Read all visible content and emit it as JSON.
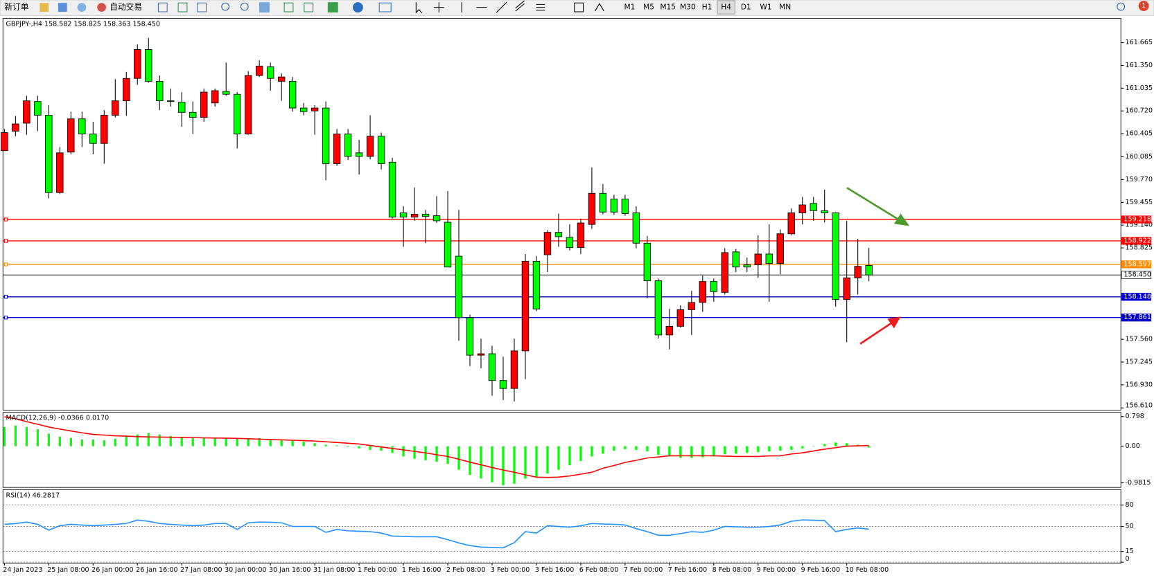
{
  "toolbar": {
    "order_button": "新订单",
    "auto_trading": "自动交易",
    "timeframes": [
      "M1",
      "M5",
      "M15",
      "M30",
      "H1",
      "H4",
      "D1",
      "W1",
      "MN"
    ],
    "badge": "1"
  },
  "chart_data": [
    {
      "type": "candlestick",
      "title": "GBPJPY-,H4 158.582 158.825 158.363 158.450",
      "categories": [
        "24 Jan 2023",
        null,
        null,
        null,
        "25 Jan 08:00",
        null,
        null,
        null,
        "26 Jan 00:00",
        null,
        null,
        null,
        "26 Jan 16:00",
        null,
        null,
        null,
        "27 Jan 08:00",
        null,
        null,
        null,
        "30 Jan 00:00",
        null,
        null,
        null,
        "30 Jan 16:00",
        null,
        null,
        null,
        "31 Jan 08:00",
        null,
        null,
        null,
        "1 Feb 00:00",
        null,
        null,
        null,
        "1 Feb 16:00",
        null,
        null,
        null,
        "2 Feb 08:00",
        null,
        null,
        null,
        "3 Feb 00:00",
        null,
        null,
        null,
        "3 Feb 16:00",
        null,
        null,
        null,
        "6 Feb 08:00",
        null,
        null,
        null,
        "7 Feb 00:00",
        null,
        null,
        null,
        "7 Feb 16:00",
        null,
        null,
        null,
        "8 Feb 08:00",
        null,
        null,
        null,
        "9 Feb 00:00",
        null,
        null,
        null,
        "9 Feb 16:00",
        null,
        null,
        null,
        "10 Feb 08:00",
        null,
        null
      ],
      "open": [
        160.17,
        160.44,
        160.55,
        160.85,
        160.66,
        159.59,
        160.15,
        160.61,
        160.4,
        160.27,
        160.66,
        160.86,
        161.17,
        161.57,
        161.13,
        160.86,
        160.84,
        160.7,
        160.63,
        160.83,
        160.99,
        160.95,
        160.4,
        161.21,
        161.33,
        161.13,
        161.13,
        160.76,
        160.72,
        160.76,
        159.99,
        160.4,
        160.14,
        160.09,
        160.37,
        160.01,
        159.31,
        159.25,
        159.29,
        159.27,
        159.18,
        158.71,
        157.86,
        157.34,
        157.36,
        156.99,
        156.88,
        157.4,
        158.64,
        158.73,
        159.04,
        158.97,
        158.83,
        159.15,
        159.58,
        159.5,
        159.5,
        159.31,
        158.89,
        158.37,
        157.62,
        157.74,
        157.97,
        158.07,
        158.36,
        158.21,
        158.77,
        158.59,
        158.59,
        158.74,
        158.61,
        159.02,
        159.31,
        159.44,
        159.34,
        159.31,
        158.11,
        158.41,
        158.582
      ],
      "high": [
        160.47,
        160.65,
        160.93,
        160.93,
        160.8,
        160.22,
        160.71,
        160.71,
        160.57,
        160.73,
        161.16,
        161.26,
        161.64,
        161.73,
        161.21,
        161.03,
        160.98,
        160.85,
        161.03,
        161.03,
        161.39,
        160.98,
        161.27,
        161.42,
        161.39,
        161.24,
        161.19,
        160.83,
        160.8,
        160.85,
        160.47,
        160.47,
        160.32,
        160.66,
        160.42,
        160.07,
        159.4,
        159.66,
        159.35,
        159.54,
        159.61,
        159.35,
        157.9,
        157.57,
        157.47,
        157.32,
        157.57,
        158.74,
        158.71,
        159.07,
        159.3,
        159.15,
        159.23,
        159.94,
        159.71,
        159.56,
        159.56,
        159.4,
        158.99,
        158.4,
        157.98,
        158.03,
        158.23,
        158.44,
        158.4,
        158.82,
        158.81,
        158.69,
        159.0,
        159.15,
        159.08,
        159.37,
        159.53,
        159.53,
        159.63,
        159.32,
        159.2,
        158.95,
        158.825
      ],
      "low": [
        160.17,
        160.37,
        160.39,
        160.44,
        159.51,
        159.57,
        160.12,
        160.22,
        160.12,
        159.99,
        160.63,
        160.65,
        161.08,
        161.11,
        160.73,
        160.78,
        160.5,
        160.4,
        160.57,
        160.78,
        160.93,
        160.2,
        160.39,
        161.19,
        161.0,
        160.86,
        160.71,
        160.66,
        160.39,
        159.76,
        159.96,
        160.04,
        159.84,
        160.05,
        159.91,
        159.23,
        158.84,
        159.2,
        158.89,
        159.17,
        158.56,
        157.54,
        157.19,
        157.16,
        156.78,
        156.72,
        156.7,
        157.01,
        157.95,
        158.49,
        158.84,
        158.79,
        158.74,
        159.09,
        159.29,
        159.28,
        159.27,
        158.82,
        158.13,
        157.57,
        157.42,
        157.72,
        157.62,
        157.94,
        158.08,
        158.18,
        158.49,
        158.49,
        158.41,
        158.08,
        158.46,
        159.0,
        159.15,
        159.2,
        159.18,
        158.01,
        157.52,
        158.18,
        158.363
      ],
      "close": [
        160.42,
        160.54,
        160.86,
        160.66,
        159.59,
        160.14,
        160.61,
        160.4,
        160.27,
        160.66,
        160.86,
        161.17,
        161.57,
        161.13,
        160.86,
        160.85,
        160.7,
        160.63,
        160.98,
        161.0,
        160.95,
        160.4,
        161.21,
        161.34,
        161.17,
        161.19,
        160.76,
        160.71,
        160.76,
        159.99,
        160.4,
        160.09,
        160.09,
        160.37,
        159.99,
        159.25,
        159.25,
        159.29,
        159.26,
        159.2,
        158.56,
        157.86,
        157.34,
        157.36,
        156.99,
        156.88,
        157.4,
        158.64,
        157.98,
        159.04,
        158.98,
        158.83,
        159.17,
        159.58,
        159.32,
        159.32,
        159.3,
        158.89,
        158.37,
        157.62,
        157.74,
        157.97,
        158.07,
        158.36,
        158.22,
        158.76,
        158.56,
        158.56,
        158.74,
        158.61,
        159.02,
        159.31,
        159.42,
        159.34,
        159.31,
        158.11,
        158.41,
        158.57,
        158.45
      ],
      "up_color": "#ff0000",
      "down_color": "#00ff00",
      "ylim": [
        156.58,
        162.0
      ],
      "yticks": [
        161.665,
        {
          "value": 161.35,
          "label": "161.350"
        },
        161.035,
        {
          "value": 160.72,
          "label": "160.720"
        },
        160.405,
        160.085,
        {
          "value": 159.77,
          "label": "159.770"
        },
        159.455,
        {
          "value": 159.14,
          "label": "159.140"
        },
        158.825,
        {
          "value": 157.56,
          "label": "157.560"
        },
        157.245,
        {
          "value": 156.93,
          "label": "156.930"
        },
        {
          "value": 156.61,
          "label": "156.610"
        }
      ],
      "levels": [
        {
          "value": 159.218,
          "color": "#ff0000"
        },
        {
          "value": 158.922,
          "color": "#ff0000"
        },
        {
          "value": 158.597,
          "color": "#ff8c00"
        },
        {
          "value": 158.45,
          "label": "158.450",
          "color": "#000000"
        },
        {
          "value": 158.148,
          "color": "#0000cd"
        },
        {
          "value": 157.861,
          "color": "#0000cd"
        }
      ],
      "grid": false
    },
    {
      "type": "bar",
      "title": "MACD(12,26,9) -0.0366 0.0170",
      "ylim": [
        -1.109,
        0.911
      ],
      "yticks": [
        0.798,
        {
          "value": 0,
          "label": "0.00"
        },
        -0.9815
      ],
      "series": [
        {
          "type": "bar",
          "color": "#00ff00",
          "values": [
            0.515,
            0.554,
            0.515,
            0.455,
            0.337,
            0.257,
            0.218,
            0.178,
            0.178,
            0.158,
            0.198,
            0.277,
            0.317,
            0.356,
            0.317,
            0.277,
            0.238,
            0.218,
            0.218,
            0.238,
            0.218,
            0.198,
            0.198,
            0.218,
            0.198,
            0.178,
            0.158,
            0.119,
            0.079,
            0.04,
            0.02,
            -0.02,
            -0.059,
            -0.099,
            -0.119,
            -0.178,
            -0.277,
            -0.337,
            -0.376,
            -0.416,
            -0.475,
            -0.634,
            -0.772,
            -0.871,
            -0.97,
            -1.05,
            -1.01,
            -0.871,
            -0.832,
            -0.733,
            -0.634,
            -0.515,
            -0.396,
            -0.277,
            -0.198,
            -0.119,
            -0.079,
            -0.099,
            -0.139,
            -0.238,
            -0.277,
            -0.317,
            -0.317,
            -0.297,
            -0.277,
            -0.218,
            -0.198,
            -0.178,
            -0.158,
            -0.139,
            -0.119,
            -0.099,
            -0.059,
            0,
            0.059,
            0.099,
            0.079,
            0.04,
            -0.0366
          ]
        },
        {
          "type": "line",
          "color": "#ff0000",
          "values": [
            0.792,
            0.74,
            0.66,
            0.59,
            0.515,
            0.46,
            0.41,
            0.36,
            0.317,
            0.3,
            0.28,
            0.27,
            0.257,
            0.25,
            0.245,
            0.24,
            0.238,
            0.23,
            0.225,
            0.22,
            0.218,
            0.21,
            0.2,
            0.19,
            0.178,
            0.17,
            0.16,
            0.15,
            0.139,
            0.12,
            0.1,
            0.08,
            0.059,
            0.02,
            -0.02,
            -0.06,
            -0.099,
            -0.14,
            -0.18,
            -0.23,
            -0.277,
            -0.35,
            -0.43,
            -0.5,
            -0.574,
            -0.64,
            -0.7,
            -0.77,
            -0.832,
            -0.84,
            -0.832,
            -0.8,
            -0.752,
            -0.7,
            -0.594,
            -0.52,
            -0.436,
            -0.38,
            -0.317,
            -0.29,
            -0.257,
            -0.257,
            -0.257,
            -0.257,
            -0.257,
            -0.267,
            -0.277,
            -0.277,
            -0.277,
            -0.26,
            -0.257,
            -0.21,
            -0.178,
            -0.13,
            -0.079,
            -0.04,
            0,
            0.01,
            0.017
          ]
        }
      ],
      "grid": false
    },
    {
      "type": "line",
      "title": "RSI(14) 46.2817",
      "ylim": [
        -1.55,
        101.65
      ],
      "yticks": [
        0,
        15,
        50,
        80
      ],
      "series": [
        {
          "type": "line",
          "color": "#1e90ff",
          "values": [
            53.1,
            54,
            56.2,
            53.1,
            44.9,
            51.1,
            53.1,
            52,
            51.1,
            52,
            53,
            54.2,
            59,
            57.3,
            54.2,
            53,
            52,
            51.1,
            52,
            54.2,
            54.2,
            45.9,
            55.2,
            56.2,
            56,
            55.2,
            50.1,
            50.1,
            50.1,
            41.8,
            45.9,
            43.9,
            43.4,
            42.8,
            40.8,
            36.6,
            36.2,
            35.6,
            35.6,
            35.6,
            31.5,
            27,
            23.2,
            21.2,
            20.6,
            20.1,
            27.3,
            42.8,
            40.8,
            51.1,
            50,
            49,
            51,
            54.2,
            53.5,
            53.1,
            52.1,
            47,
            42.8,
            37.7,
            37.7,
            40,
            42.8,
            41.8,
            44.9,
            50.1,
            49.5,
            49,
            49,
            50,
            52.1,
            57.3,
            59.3,
            58.8,
            58.3,
            42.8,
            45.9,
            48,
            46.28
          ]
        }
      ],
      "grid": true
    }
  ]
}
